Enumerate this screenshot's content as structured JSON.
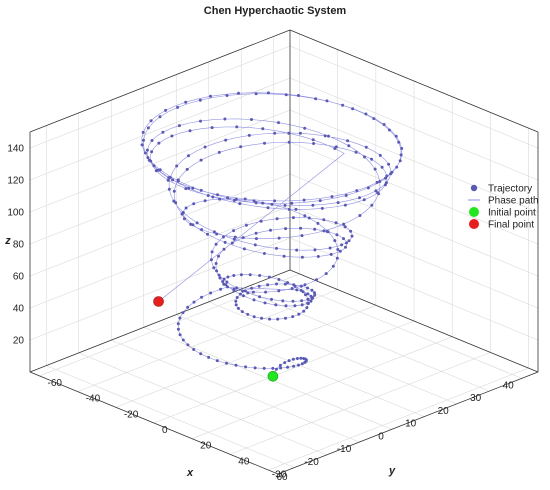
{
  "chart_data": {
    "type": "scatter",
    "title": "Chen Hyperchaotic System",
    "xlabel": "x",
    "ylabel": "y",
    "zlabel": "z",
    "xlim": [
      -35,
      45
    ],
    "ylim": [
      -65,
      65
    ],
    "zlim": [
      0,
      150
    ],
    "x_ticks": [
      -30,
      -20,
      -10,
      0,
      10,
      20,
      30,
      40
    ],
    "y_ticks": [
      -60,
      -40,
      -20,
      0,
      20,
      40,
      60
    ],
    "z_ticks": [
      20,
      40,
      60,
      80,
      100,
      120,
      140
    ],
    "grid": true,
    "legend_position": "right",
    "legend": [
      {
        "label": "Trajectory",
        "marker": "dot",
        "color": "#5a5ab4"
      },
      {
        "label": "Phase path",
        "marker": "line",
        "color": "#8c8ce6"
      },
      {
        "label": "Initial point",
        "marker": "dot",
        "color": "#22e61e"
      },
      {
        "label": "Final point",
        "marker": "dot",
        "color": "#e61e1e"
      }
    ],
    "initial_point": [
      1.0,
      1.0,
      1.0
    ],
    "final_point": [
      -19.8,
      -23.5,
      52.3
    ],
    "trajectory_sample_count": 600,
    "colors": {
      "trajectory": "#5a5ab4",
      "phase_path": "#8c8ce6",
      "initial": "#22e61e",
      "final": "#e61e1e"
    }
  }
}
